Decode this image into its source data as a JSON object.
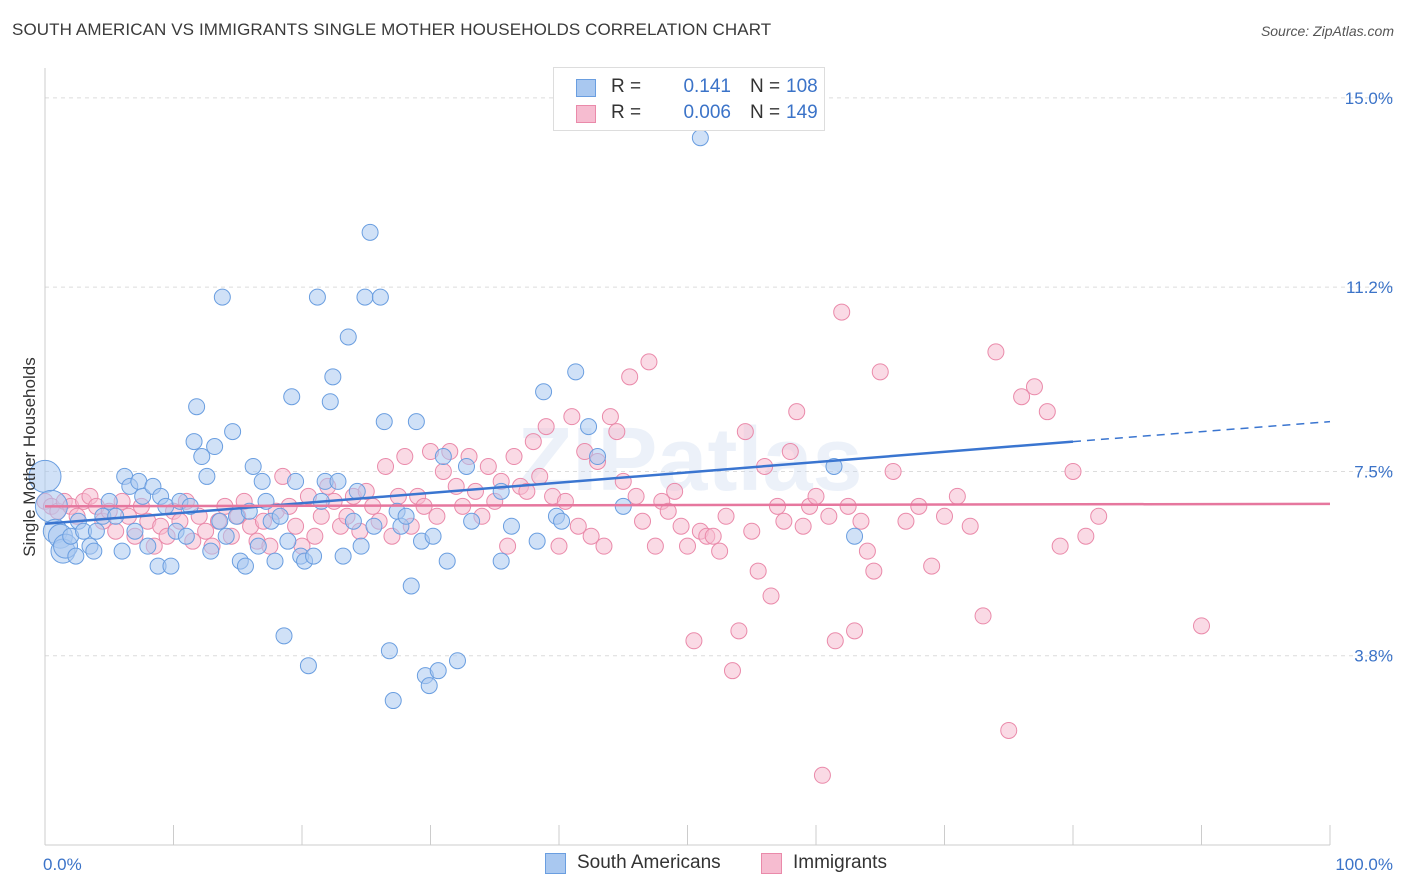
{
  "title": "SOUTH AMERICAN VS IMMIGRANTS SINGLE MOTHER HOUSEHOLDS CORRELATION CHART",
  "source": "Source: ZipAtlas.com",
  "watermark": "ZIPatlas",
  "legend": {
    "rows": [
      {
        "r_label": "R =",
        "r_value": "0.141",
        "n_label": "N =",
        "n_value": "108"
      },
      {
        "r_label": "R =",
        "r_value": "0.006",
        "n_label": "N =",
        "n_value": "149"
      }
    ]
  },
  "bottom_legend": [
    {
      "label": "South Americans"
    },
    {
      "label": "Immigrants"
    }
  ],
  "colors": {
    "blue_fill": "#a9c8f0",
    "blue_stroke": "#6a9ee0",
    "blue_line": "#3a75d0",
    "pink_fill": "#f6bcd0",
    "pink_stroke": "#ea8aaa",
    "pink_line": "#e6779e",
    "tick_text": "#3b73c8",
    "grid": "#dcdcdc"
  },
  "chart_data": {
    "type": "scatter",
    "title": "SOUTH AMERICAN VS IMMIGRANTS SINGLE MOTHER HOUSEHOLDS CORRELATION CHART",
    "xlabel": "",
    "ylabel": "Single Mother Households",
    "xlim": [
      0,
      100
    ],
    "ylim": [
      0,
      15.5
    ],
    "x_tick_labels": [
      "0.0%",
      "100.0%"
    ],
    "y_ticks": [
      3.8,
      7.5,
      11.2,
      15.0
    ],
    "y_tick_labels": [
      "3.8%",
      "7.5%",
      "11.2%",
      "15.0%"
    ],
    "grid": true,
    "legend_position": "top-center",
    "series": [
      {
        "name": "South Americans",
        "trend": {
          "x0": 0,
          "y0": 6.45,
          "x1": 80,
          "y1": 8.1,
          "dash_to_x": 100,
          "dash_to_y": 8.5
        },
        "points": [
          [
            0,
            7.4
          ],
          [
            0.5,
            6.8
          ],
          [
            0.8,
            6.3
          ],
          [
            1.2,
            6.2
          ],
          [
            1.4,
            5.9
          ],
          [
            1.6,
            6.0
          ],
          [
            2,
            6.2
          ],
          [
            2.4,
            5.8
          ],
          [
            2.6,
            6.5
          ],
          [
            3,
            6.3
          ],
          [
            3.5,
            6.0
          ],
          [
            3.8,
            5.9
          ],
          [
            4,
            6.3
          ],
          [
            4.5,
            6.6
          ],
          [
            5,
            6.9
          ],
          [
            5.5,
            6.6
          ],
          [
            6,
            5.9
          ],
          [
            6.2,
            7.4
          ],
          [
            6.6,
            7.2
          ],
          [
            7,
            6.3
          ],
          [
            7.3,
            7.3
          ],
          [
            7.6,
            7.0
          ],
          [
            8,
            6.0
          ],
          [
            8.4,
            7.2
          ],
          [
            8.8,
            5.6
          ],
          [
            9,
            7.0
          ],
          [
            9.4,
            6.8
          ],
          [
            9.8,
            5.6
          ],
          [
            10.2,
            6.3
          ],
          [
            10.5,
            6.9
          ],
          [
            11,
            6.2
          ],
          [
            11.3,
            6.8
          ],
          [
            11.6,
            8.1
          ],
          [
            11.8,
            8.8
          ],
          [
            12.2,
            7.8
          ],
          [
            12.6,
            7.4
          ],
          [
            12.9,
            5.9
          ],
          [
            13.2,
            8.0
          ],
          [
            13.6,
            6.5
          ],
          [
            13.8,
            11.0
          ],
          [
            14.1,
            6.2
          ],
          [
            14.6,
            8.3
          ],
          [
            14.9,
            6.6
          ],
          [
            15.2,
            5.7
          ],
          [
            15.6,
            5.6
          ],
          [
            15.9,
            6.7
          ],
          [
            16.2,
            7.6
          ],
          [
            16.6,
            6.0
          ],
          [
            16.9,
            7.3
          ],
          [
            17.2,
            6.9
          ],
          [
            17.6,
            6.5
          ],
          [
            17.9,
            5.7
          ],
          [
            18.3,
            6.6
          ],
          [
            18.6,
            4.2
          ],
          [
            18.9,
            6.1
          ],
          [
            19.2,
            9.0
          ],
          [
            19.5,
            7.3
          ],
          [
            19.9,
            5.8
          ],
          [
            20.2,
            5.7
          ],
          [
            20.5,
            3.6
          ],
          [
            20.9,
            5.8
          ],
          [
            21.2,
            11.0
          ],
          [
            21.5,
            6.9
          ],
          [
            21.8,
            7.3
          ],
          [
            22.2,
            8.9
          ],
          [
            22.4,
            9.4
          ],
          [
            22.8,
            7.3
          ],
          [
            23.2,
            5.8
          ],
          [
            23.6,
            10.2
          ],
          [
            24.0,
            6.5
          ],
          [
            24.3,
            7.1
          ],
          [
            24.6,
            6.0
          ],
          [
            24.9,
            11.0
          ],
          [
            25.3,
            12.3
          ],
          [
            25.6,
            6.4
          ],
          [
            26.1,
            11.0
          ],
          [
            26.4,
            8.5
          ],
          [
            26.8,
            3.9
          ],
          [
            27.1,
            2.9
          ],
          [
            27.4,
            6.7
          ],
          [
            27.7,
            6.4
          ],
          [
            28.1,
            6.6
          ],
          [
            28.5,
            5.2
          ],
          [
            28.9,
            8.5
          ],
          [
            29.3,
            6.1
          ],
          [
            29.6,
            3.4
          ],
          [
            29.9,
            3.2
          ],
          [
            30.2,
            6.2
          ],
          [
            30.6,
            3.5
          ],
          [
            31.0,
            7.8
          ],
          [
            31.3,
            5.7
          ],
          [
            32.1,
            3.7
          ],
          [
            32.8,
            7.6
          ],
          [
            33.2,
            6.5
          ],
          [
            35.5,
            5.7
          ],
          [
            36.3,
            6.4
          ],
          [
            38.3,
            6.1
          ],
          [
            38.8,
            9.1
          ],
          [
            39.8,
            6.6
          ],
          [
            40.2,
            6.5
          ],
          [
            41.3,
            9.5
          ],
          [
            42.3,
            8.4
          ],
          [
            51.0,
            14.2
          ],
          [
            61.4,
            7.6
          ],
          [
            63.0,
            6.2
          ],
          [
            35.5,
            7.1
          ],
          [
            43.0,
            7.8
          ],
          [
            45.0,
            6.8
          ]
        ]
      },
      {
        "name": "Immigrants",
        "trend": {
          "x0": 0,
          "y0": 6.8,
          "x1": 100,
          "y1": 6.85
        },
        "points": [
          [
            0,
            6.9
          ],
          [
            0.5,
            6.8
          ],
          [
            1,
            6.7
          ],
          [
            1.5,
            6.9
          ],
          [
            2,
            6.8
          ],
          [
            2.5,
            6.6
          ],
          [
            3,
            6.9
          ],
          [
            3.5,
            7.0
          ],
          [
            4,
            6.8
          ],
          [
            4.5,
            6.5
          ],
          [
            5,
            6.7
          ],
          [
            5.5,
            6.3
          ],
          [
            6,
            6.9
          ],
          [
            6.5,
            6.6
          ],
          [
            7,
            6.2
          ],
          [
            7.5,
            6.8
          ],
          [
            8,
            6.5
          ],
          [
            8.5,
            6.0
          ],
          [
            9,
            6.4
          ],
          [
            9.5,
            6.2
          ],
          [
            10,
            6.7
          ],
          [
            10.5,
            6.5
          ],
          [
            11,
            6.9
          ],
          [
            11.5,
            6.1
          ],
          [
            12,
            6.6
          ],
          [
            12.5,
            6.3
          ],
          [
            13,
            6.0
          ],
          [
            13.5,
            6.5
          ],
          [
            14,
            6.8
          ],
          [
            14.5,
            6.2
          ],
          [
            15,
            6.6
          ],
          [
            15.5,
            6.9
          ],
          [
            16,
            6.4
          ],
          [
            16.5,
            6.1
          ],
          [
            17,
            6.5
          ],
          [
            17.5,
            6.0
          ],
          [
            18,
            6.7
          ],
          [
            18.5,
            7.4
          ],
          [
            19,
            6.8
          ],
          [
            19.5,
            6.4
          ],
          [
            20,
            6.0
          ],
          [
            20.5,
            7.0
          ],
          [
            21,
            6.2
          ],
          [
            21.5,
            6.6
          ],
          [
            22,
            7.2
          ],
          [
            22.5,
            6.9
          ],
          [
            23,
            6.4
          ],
          [
            23.5,
            6.6
          ],
          [
            24,
            7.0
          ],
          [
            24.5,
            6.3
          ],
          [
            25,
            7.1
          ],
          [
            25.5,
            6.8
          ],
          [
            26,
            6.5
          ],
          [
            26.5,
            7.6
          ],
          [
            27,
            6.2
          ],
          [
            27.5,
            7.0
          ],
          [
            28,
            7.8
          ],
          [
            28.5,
            6.4
          ],
          [
            29,
            7.0
          ],
          [
            29.5,
            6.8
          ],
          [
            30,
            7.9
          ],
          [
            30.5,
            6.6
          ],
          [
            31,
            7.5
          ],
          [
            31.5,
            7.9
          ],
          [
            32,
            7.2
          ],
          [
            32.5,
            6.8
          ],
          [
            33,
            7.8
          ],
          [
            33.5,
            7.1
          ],
          [
            34,
            6.6
          ],
          [
            34.5,
            7.6
          ],
          [
            35,
            6.9
          ],
          [
            35.5,
            7.3
          ],
          [
            36,
            6.0
          ],
          [
            36.5,
            7.8
          ],
          [
            37,
            7.2
          ],
          [
            37.5,
            7.1
          ],
          [
            38,
            8.1
          ],
          [
            38.5,
            7.4
          ],
          [
            39,
            8.4
          ],
          [
            39.5,
            7.0
          ],
          [
            40,
            6.0
          ],
          [
            40.5,
            6.9
          ],
          [
            41,
            8.6
          ],
          [
            41.5,
            6.4
          ],
          [
            42,
            7.9
          ],
          [
            42.5,
            6.2
          ],
          [
            43,
            7.7
          ],
          [
            43.5,
            6.0
          ],
          [
            44,
            8.6
          ],
          [
            44.5,
            8.3
          ],
          [
            45,
            7.3
          ],
          [
            45.5,
            9.4
          ],
          [
            46,
            7.0
          ],
          [
            46.5,
            6.5
          ],
          [
            47,
            9.7
          ],
          [
            47.5,
            6.0
          ],
          [
            48,
            6.9
          ],
          [
            48.5,
            6.7
          ],
          [
            49,
            7.1
          ],
          [
            49.5,
            6.4
          ],
          [
            50,
            6.0
          ],
          [
            50.5,
            4.1
          ],
          [
            51,
            6.3
          ],
          [
            51.5,
            6.2
          ],
          [
            52,
            6.2
          ],
          [
            52.5,
            5.9
          ],
          [
            53,
            6.6
          ],
          [
            53.5,
            3.5
          ],
          [
            54,
            4.3
          ],
          [
            54.5,
            8.3
          ],
          [
            55,
            6.3
          ],
          [
            55.5,
            5.5
          ],
          [
            56,
            7.6
          ],
          [
            56.5,
            5.0
          ],
          [
            57,
            6.8
          ],
          [
            57.5,
            6.5
          ],
          [
            58,
            7.9
          ],
          [
            58.5,
            8.7
          ],
          [
            59,
            6.4
          ],
          [
            59.5,
            6.8
          ],
          [
            60,
            7.0
          ],
          [
            60.5,
            1.4
          ],
          [
            61,
            6.6
          ],
          [
            61.5,
            4.1
          ],
          [
            62,
            10.7
          ],
          [
            62.5,
            6.8
          ],
          [
            63,
            4.3
          ],
          [
            63.5,
            6.5
          ],
          [
            64,
            5.9
          ],
          [
            64.5,
            5.5
          ],
          [
            65,
            9.5
          ],
          [
            66,
            7.5
          ],
          [
            67,
            6.5
          ],
          [
            68,
            6.8
          ],
          [
            69,
            5.6
          ],
          [
            70,
            6.6
          ],
          [
            71,
            7.0
          ],
          [
            72,
            6.4
          ],
          [
            73,
            4.6
          ],
          [
            74,
            9.9
          ],
          [
            75,
            2.3
          ],
          [
            76,
            9.0
          ],
          [
            77,
            9.2
          ],
          [
            78,
            8.7
          ],
          [
            79,
            6.0
          ],
          [
            80,
            7.5
          ],
          [
            81,
            6.2
          ],
          [
            82,
            6.6
          ],
          [
            90,
            4.4
          ]
        ]
      }
    ]
  }
}
